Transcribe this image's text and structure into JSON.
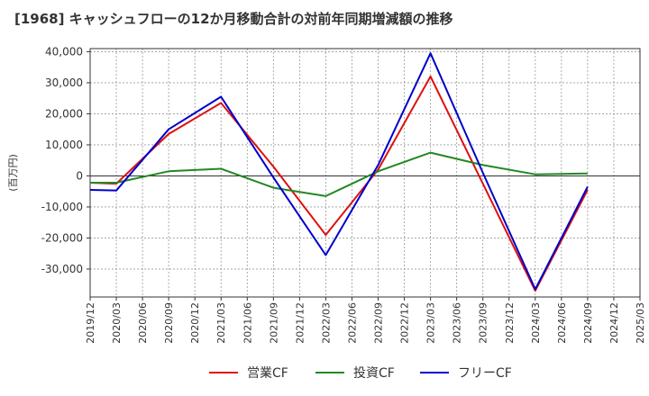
{
  "title": "[1968]  キャッシュフローの12か月移動合計の対前年同期増減額の推移",
  "chart_data": {
    "type": "line",
    "ylabel": "(百万円)",
    "xlabel": "",
    "ylim": [
      -39000,
      41000
    ],
    "yticks": [
      40000,
      30000,
      20000,
      10000,
      0,
      -10000,
      -20000,
      -30000
    ],
    "ytick_labels": [
      "40,000",
      "30,000",
      "20,000",
      "10,000",
      "0",
      "-10,000",
      "-20,000",
      "-30,000"
    ],
    "categories": [
      "2019/12",
      "2020/03",
      "2020/06",
      "2020/09",
      "2020/12",
      "2021/03",
      "2021/06",
      "2021/09",
      "2021/12",
      "2022/03",
      "2022/06",
      "2022/09",
      "2022/12",
      "2023/03",
      "2023/06",
      "2023/09",
      "2023/12",
      "2024/03",
      "2024/06",
      "2024/09",
      "2024/12",
      "2025/03"
    ],
    "grid": true,
    "legend_position": "bottom",
    "series": [
      {
        "name": "営業CF",
        "color": "#dd1111",
        "points": [
          [
            "2019/12",
            -2200
          ],
          [
            "2020/03",
            -2500
          ],
          [
            "2020/09",
            13500
          ],
          [
            "2021/03",
            23500
          ],
          [
            "2021/09",
            3000
          ],
          [
            "2022/03",
            -19000
          ],
          [
            "2022/09",
            2000
          ],
          [
            "2023/03",
            32000
          ],
          [
            "2023/09",
            -2500
          ],
          [
            "2024/03",
            -37000
          ],
          [
            "2024/09",
            -4500
          ]
        ]
      },
      {
        "name": "投資CF",
        "color": "#228822",
        "points": [
          [
            "2019/12",
            -2200
          ],
          [
            "2020/03",
            -2200
          ],
          [
            "2020/09",
            1500
          ],
          [
            "2021/03",
            2300
          ],
          [
            "2021/09",
            -3800
          ],
          [
            "2022/03",
            -6500
          ],
          [
            "2022/09",
            1500
          ],
          [
            "2023/03",
            7500
          ],
          [
            "2023/09",
            3500
          ],
          [
            "2024/03",
            500
          ],
          [
            "2024/09",
            800
          ]
        ]
      },
      {
        "name": "フリーCF",
        "color": "#0000cc",
        "points": [
          [
            "2019/12",
            -4500
          ],
          [
            "2020/03",
            -4700
          ],
          [
            "2020/09",
            15000
          ],
          [
            "2021/03",
            25500
          ],
          [
            "2021/09",
            -500
          ],
          [
            "2022/03",
            -25500
          ],
          [
            "2022/09",
            3500
          ],
          [
            "2023/03",
            39500
          ],
          [
            "2023/09",
            1000
          ],
          [
            "2024/03",
            -36500
          ],
          [
            "2024/09",
            -3500
          ]
        ]
      }
    ]
  }
}
